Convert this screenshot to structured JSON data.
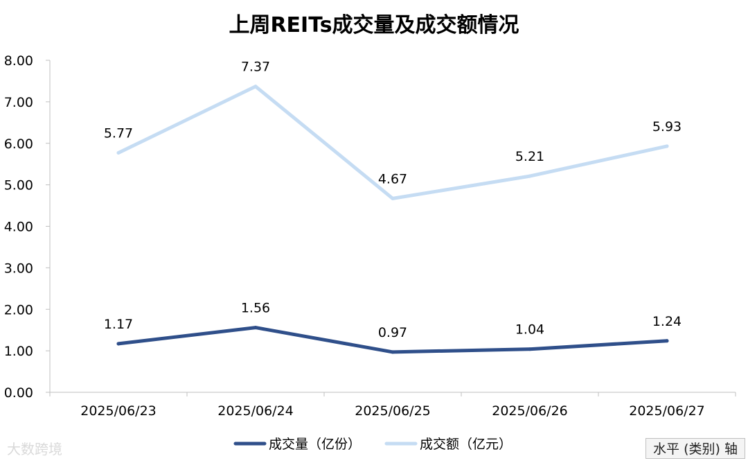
{
  "chart_data": {
    "type": "line",
    "title": "上周REITs成交量及成交额情况",
    "categories": [
      "2025/06/23",
      "2025/06/24",
      "2025/06/25",
      "2025/06/26",
      "2025/06/27"
    ],
    "series": [
      {
        "name": "成交量（亿份）",
        "values": [
          1.17,
          1.56,
          0.97,
          1.04,
          1.24
        ],
        "color": "#2f4f8a"
      },
      {
        "name": "成交额（亿元）",
        "values": [
          5.77,
          7.37,
          4.67,
          5.21,
          5.93
        ],
        "color": "#c5dcf3"
      }
    ],
    "y_ticks": [
      "0.00",
      "1.00",
      "2.00",
      "3.00",
      "4.00",
      "5.00",
      "6.00",
      "7.00",
      "8.00"
    ],
    "ylim": [
      0,
      8
    ],
    "grid": false,
    "legend_position": "bottom",
    "data_labels": true
  },
  "watermark": "大数跨境",
  "axis_tag": "水平 (类别) 轴"
}
